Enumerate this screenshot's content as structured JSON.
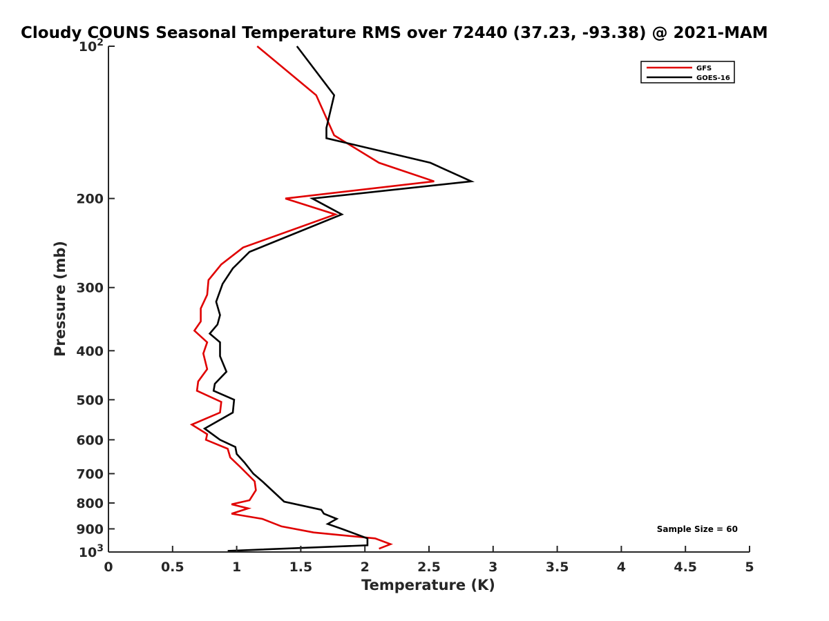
{
  "chart_data": {
    "type": "line",
    "title": "Cloudy COUNS Seasonal Temperature RMS over 72440 (37.23, -93.38) @ 2021-MAM",
    "xlabel": "Temperature (K)",
    "ylabel": "Pressure (mb)",
    "xlim": [
      0,
      5
    ],
    "ylim": [
      100,
      1000
    ],
    "yscale": "log",
    "y_reversed": true,
    "xticks": [
      0,
      0.5,
      1,
      1.5,
      2,
      2.5,
      3,
      3.5,
      4,
      4.5,
      5
    ],
    "xtick_labels": [
      "0",
      "0.5",
      "1",
      "1.5",
      "2",
      "2.5",
      "3",
      "3.5",
      "4",
      "4.5",
      "5"
    ],
    "yticks": [
      100,
      200,
      300,
      400,
      500,
      600,
      700,
      800,
      900,
      1000
    ],
    "ytick_labels": [
      {
        "base": "10",
        "exp": "2"
      },
      {
        "base": "200",
        "exp": ""
      },
      {
        "base": "300",
        "exp": ""
      },
      {
        "base": "400",
        "exp": ""
      },
      {
        "base": "500",
        "exp": ""
      },
      {
        "base": "600",
        "exp": ""
      },
      {
        "base": "700",
        "exp": ""
      },
      {
        "base": "800",
        "exp": ""
      },
      {
        "base": "900",
        "exp": ""
      },
      {
        "base": "10",
        "exp": "3"
      }
    ],
    "legend_position": "top-right",
    "annotation": "Sample Size = 60",
    "series": [
      {
        "name": "GFS",
        "color": "#e00000",
        "points": [
          [
            1.16,
            100
          ],
          [
            1.62,
            125
          ],
          [
            1.76,
            150
          ],
          [
            2.11,
            170
          ],
          [
            2.54,
            185
          ],
          [
            1.38,
            200
          ],
          [
            1.77,
            215
          ],
          [
            1.05,
            250
          ],
          [
            0.88,
            270
          ],
          [
            0.78,
            290
          ],
          [
            0.77,
            310
          ],
          [
            0.72,
            330
          ],
          [
            0.72,
            350
          ],
          [
            0.67,
            365
          ],
          [
            0.77,
            385
          ],
          [
            0.74,
            405
          ],
          [
            0.77,
            435
          ],
          [
            0.7,
            460
          ],
          [
            0.69,
            480
          ],
          [
            0.88,
            505
          ],
          [
            0.87,
            530
          ],
          [
            0.65,
            560
          ],
          [
            0.77,
            585
          ],
          [
            0.76,
            600
          ],
          [
            0.93,
            625
          ],
          [
            0.95,
            650
          ],
          [
            1.03,
            680
          ],
          [
            1.14,
            725
          ],
          [
            1.15,
            755
          ],
          [
            1.1,
            790
          ],
          [
            0.96,
            805
          ],
          [
            1.09,
            820
          ],
          [
            0.96,
            840
          ],
          [
            1.2,
            860
          ],
          [
            1.35,
            890
          ],
          [
            1.6,
            915
          ],
          [
            2.08,
            940
          ],
          [
            2.2,
            965
          ],
          [
            2.11,
            985
          ]
        ]
      },
      {
        "name": "GOES-16",
        "color": "#000000",
        "points": [
          [
            1.47,
            100
          ],
          [
            1.76,
            125
          ],
          [
            1.7,
            145
          ],
          [
            1.7,
            152
          ],
          [
            2.51,
            170
          ],
          [
            2.83,
            185
          ],
          [
            1.59,
            200
          ],
          [
            1.82,
            215
          ],
          [
            1.1,
            255
          ],
          [
            0.97,
            275
          ],
          [
            0.89,
            295
          ],
          [
            0.84,
            320
          ],
          [
            0.87,
            340
          ],
          [
            0.85,
            355
          ],
          [
            0.79,
            370
          ],
          [
            0.87,
            385
          ],
          [
            0.87,
            410
          ],
          [
            0.92,
            440
          ],
          [
            0.83,
            465
          ],
          [
            0.82,
            480
          ],
          [
            0.98,
            500
          ],
          [
            0.97,
            530
          ],
          [
            0.75,
            570
          ],
          [
            0.87,
            600
          ],
          [
            0.99,
            620
          ],
          [
            1.0,
            640
          ],
          [
            1.06,
            665
          ],
          [
            1.13,
            700
          ],
          [
            1.2,
            725
          ],
          [
            1.37,
            795
          ],
          [
            1.66,
            825
          ],
          [
            1.68,
            840
          ],
          [
            1.78,
            860
          ],
          [
            1.71,
            880
          ],
          [
            1.82,
            900
          ],
          [
            2.02,
            940
          ],
          [
            2.02,
            970
          ],
          [
            0.93,
            995
          ]
        ]
      }
    ]
  }
}
